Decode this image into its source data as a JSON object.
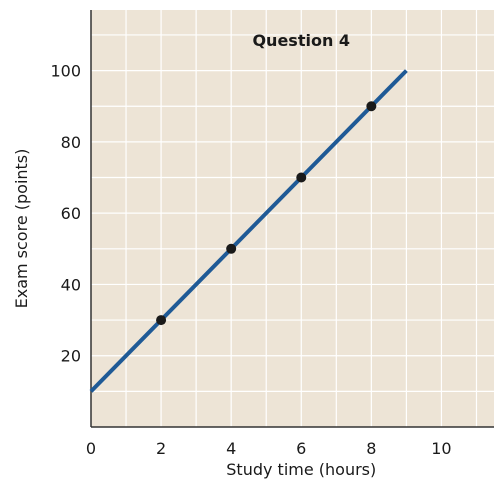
{
  "chart_data": {
    "type": "line",
    "title": "Question 4",
    "xlabel": "Study time (hours)",
    "ylabel": "Exam score (points)",
    "xlim": [
      0,
      11.5
    ],
    "ylim": [
      0,
      117
    ],
    "x_ticks": [
      0,
      2,
      4,
      6,
      8,
      10
    ],
    "y_ticks": [
      20,
      40,
      60,
      80,
      100
    ],
    "grid": true,
    "grid_step_x": 1,
    "grid_step_y": 10,
    "series": [
      {
        "line": [
          [
            0,
            10
          ],
          [
            9,
            100
          ]
        ],
        "points": [
          {
            "x": 2,
            "y": 30
          },
          {
            "x": 4,
            "y": 50
          },
          {
            "x": 6,
            "y": 70
          },
          {
            "x": 8,
            "y": 90
          }
        ]
      }
    ],
    "colors": {
      "plot_background": "#ede4d6",
      "grid": "#ffffff",
      "axis": "#333333",
      "line": "#1f5a96",
      "marker": "#1a1a1a"
    }
  }
}
